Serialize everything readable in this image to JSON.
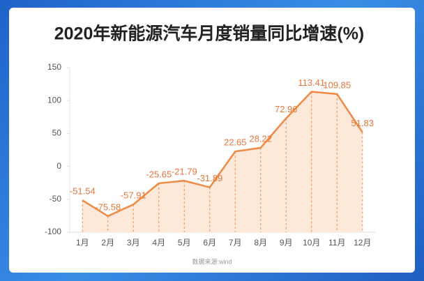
{
  "chart_data": {
    "type": "line",
    "title": "2020年新能源汽车月度销量同比增速(%)",
    "source": "数据来源:wind",
    "categories": [
      "1月",
      "2月",
      "3月",
      "4月",
      "5月",
      "6月",
      "7月",
      "8月",
      "9月",
      "10月",
      "11月",
      "12月"
    ],
    "values": [
      -51.54,
      -75.58,
      -57.91,
      -25.65,
      -21.79,
      -31.89,
      22.65,
      28.22,
      72.96,
      113.41,
      109.85,
      51.83
    ],
    "color": "#ef8a45",
    "label_color": "#e8763a",
    "area_color": "#fde9da",
    "data_labels": true,
    "drop_lines": true,
    "ylim": [
      -100,
      150
    ],
    "yticks": [
      -100,
      -50,
      0,
      50,
      100,
      150
    ]
  }
}
